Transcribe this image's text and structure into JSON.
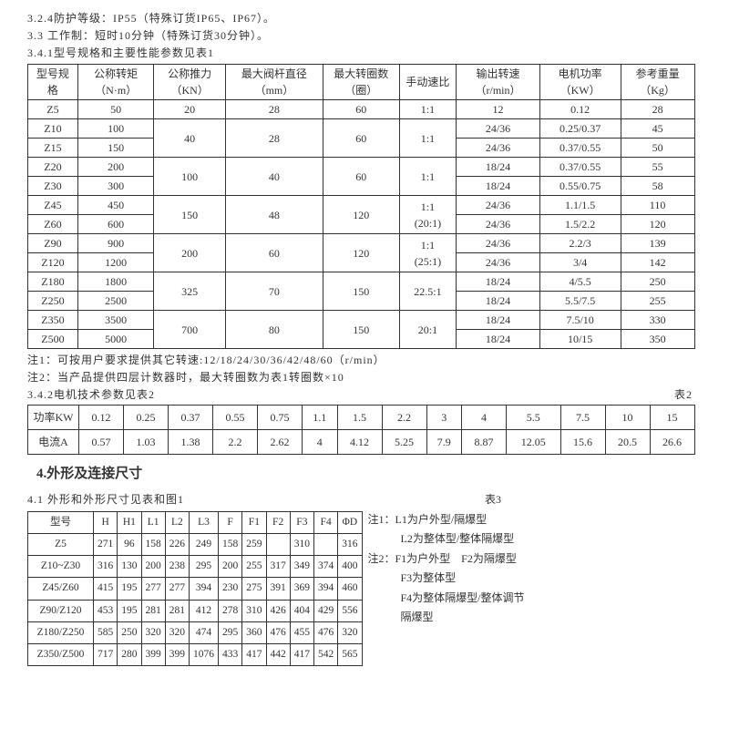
{
  "colors": {
    "text": "#333333",
    "border": "#333333",
    "bg": "#ffffff"
  },
  "intro": {
    "l1": "3.2.4防护等级：IP55（特殊订货IP65、IP67）。",
    "l2": "3.3 工作制：短时10分钟（特殊订货30分钟）。",
    "l3": "3.4.1型号规格和主要性能参数见表1"
  },
  "table1": {
    "headers": [
      "型号规格",
      "公称转矩（N·m）",
      "公称推力（KN）",
      "最大阀杆直径（mm）",
      "最大转圈数（圈）",
      "手动速比",
      "输出转速（r/min）",
      "电机功率（KW）",
      "参考重量（Kg）"
    ],
    "rows": [
      {
        "r": [
          "Z5",
          "50",
          "20",
          "28",
          "60",
          "1:1",
          "12",
          "0.12",
          "28"
        ]
      },
      {
        "r": [
          "Z10",
          "100"
        ],
        "m": {
          "2": "40",
          "3": "28",
          "4": "60",
          "5": "1:1"
        },
        "t": [
          "24/36",
          "0.25/0.37",
          "45"
        ]
      },
      {
        "r": [
          "Z15",
          "150"
        ],
        "t": [
          "24/36",
          "0.37/0.55",
          "50"
        ]
      },
      {
        "r": [
          "Z20",
          "200"
        ],
        "m": {
          "2": "100",
          "3": "40",
          "4": "60",
          "5": "1:1"
        },
        "t": [
          "18/24",
          "0.37/0.55",
          "55"
        ]
      },
      {
        "r": [
          "Z30",
          "300"
        ],
        "t": [
          "18/24",
          "0.55/0.75",
          "58"
        ]
      },
      {
        "r": [
          "Z45",
          "450"
        ],
        "m": {
          "2": "150",
          "3": "48",
          "4": "120",
          "5": "1:1\n(20:1)"
        },
        "t": [
          "24/36",
          "1.1/1.5",
          "110"
        ]
      },
      {
        "r": [
          "Z60",
          "600"
        ],
        "t": [
          "24/36",
          "1.5/2.2",
          "120"
        ]
      },
      {
        "r": [
          "Z90",
          "900"
        ],
        "m": {
          "2": "200",
          "3": "60",
          "4": "120",
          "5": "1:1\n(25:1)"
        },
        "t": [
          "24/36",
          "2.2/3",
          "139"
        ]
      },
      {
        "r": [
          "Z120",
          "1200"
        ],
        "t": [
          "24/36",
          "3/4",
          "142"
        ]
      },
      {
        "r": [
          "Z180",
          "1800"
        ],
        "m": {
          "2": "325",
          "3": "70",
          "4": "150",
          "5": "22.5:1"
        },
        "t": [
          "18/24",
          "4/5.5",
          "250"
        ]
      },
      {
        "r": [
          "Z250",
          "2500"
        ],
        "t": [
          "18/24",
          "5.5/7.5",
          "255"
        ]
      },
      {
        "r": [
          "Z350",
          "3500"
        ],
        "m": {
          "2": "700",
          "3": "80",
          "4": "150",
          "5": "20:1"
        },
        "t": [
          "18/24",
          "7.5/10",
          "330"
        ]
      },
      {
        "r": [
          "Z500",
          "5000"
        ],
        "t": [
          "18/24",
          "10/15",
          "350"
        ]
      }
    ]
  },
  "notes": {
    "n1": "注1：可按用户要求提供其它转速:12/18/24/30/36/42/48/60（r/min）",
    "n2": "注2：当产品提供四层计数器时，最大转圈数为表1转圈数×10",
    "n3": "3.4.2电机技术参数见表2",
    "t2label": "表2"
  },
  "table2": {
    "row1": [
      "功率KW",
      "0.12",
      "0.25",
      "0.37",
      "0.55",
      "0.75",
      "1.1",
      "1.5",
      "2.2",
      "3",
      "4",
      "5.5",
      "7.5",
      "10",
      "15"
    ],
    "row2": [
      "电流A",
      "0.57",
      "1.03",
      "1.38",
      "2.2",
      "2.62",
      "4",
      "4.12",
      "5.25",
      "7.9",
      "8.87",
      "12.05",
      "15.6",
      "20.5",
      "26.6"
    ]
  },
  "section4": "4.外形及连接尺寸",
  "t3intro": "4.1 外形和外形尺寸见表和图1",
  "t3label": "表3",
  "table3": {
    "headers": [
      "型号",
      "H",
      "H1",
      "L1",
      "L2",
      "L3",
      "F",
      "F1",
      "F2",
      "F3",
      "F4",
      "ΦD"
    ],
    "rows": [
      [
        "Z5",
        "271",
        "96",
        "158",
        "226",
        "249",
        "158",
        "259",
        "",
        "310",
        "",
        "316"
      ],
      [
        "Z10~Z30",
        "316",
        "130",
        "200",
        "238",
        "295",
        "200",
        "255",
        "317",
        "349",
        "374",
        "400"
      ],
      [
        "Z45/Z60",
        "415",
        "195",
        "277",
        "277",
        "394",
        "230",
        "275",
        "391",
        "369",
        "394",
        "460"
      ],
      [
        "Z90/Z120",
        "453",
        "195",
        "281",
        "281",
        "412",
        "278",
        "310",
        "426",
        "404",
        "429",
        "556"
      ],
      [
        "Z180/Z250",
        "585",
        "250",
        "320",
        "320",
        "474",
        "295",
        "360",
        "476",
        "455",
        "476",
        "320"
      ],
      [
        "Z350/Z500",
        "717",
        "280",
        "399",
        "399",
        "1076",
        "433",
        "417",
        "442",
        "417",
        "542",
        "565"
      ]
    ]
  },
  "sidenotes": {
    "s1": "注1：L1为户外型/隔爆型",
    "s2": "　　　L2为整体型/整体隔爆型",
    "s3": "注2：F1为户外型　F2为隔爆型",
    "s4": "　　　F3为整体型",
    "s5": "　　　F4为整体隔爆型/整体调节",
    "s6": "　　　隔爆型"
  }
}
